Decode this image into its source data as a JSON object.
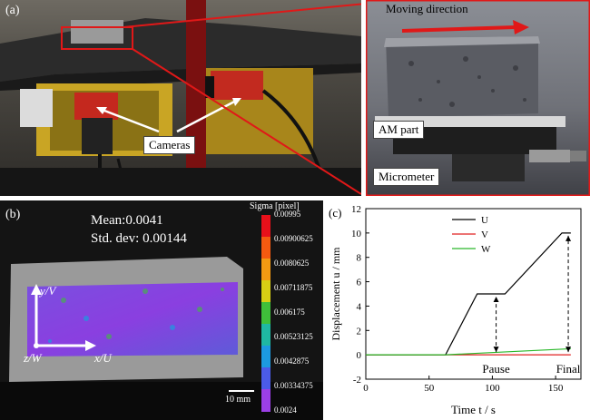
{
  "panel_a": {
    "label": "(a)",
    "cameras_label": "Cameras",
    "moving_direction_label": "Moving direction",
    "am_part_label": "AM part",
    "micrometer_label": "Micrometer"
  },
  "panel_b": {
    "label": "(b)",
    "mean_text": "Mean:0.0041",
    "std_text": "Std. dev: 0.00144",
    "colorbar_title": "Sigma [pixel]",
    "colorbar_ticks": [
      "0.00995",
      "0.00900625",
      "0.0080625",
      "0.00711875",
      "0.006175",
      "0.00523125",
      "0.0042875",
      "0.00334375",
      "0.0024"
    ],
    "colorbar_colors": [
      "#e8101a",
      "#f55a10",
      "#f39a12",
      "#d8cf14",
      "#3fbf3a",
      "#1fb8a2",
      "#1c9ae0",
      "#4b5be8",
      "#9b3fe6"
    ],
    "axis_v": "y/V",
    "axis_u": "x/U",
    "axis_w": "z/W",
    "scale_label": "10 mm"
  },
  "chart_data": {
    "type": "line",
    "panel_label": "(c)",
    "xlabel": "Time t / s",
    "ylabel": "Displacement u / mm",
    "xlim": [
      0,
      170
    ],
    "ylim": [
      -2,
      12
    ],
    "xticks": [
      0,
      50,
      100,
      150
    ],
    "yticks": [
      -2,
      0,
      2,
      4,
      6,
      8,
      10,
      12
    ],
    "series": [
      {
        "name": "U",
        "color": "#000000",
        "x": [
          0,
          63,
          88,
          103,
          105,
          110,
          155,
          162
        ],
        "y": [
          0,
          0,
          5,
          5,
          5,
          5,
          10,
          10
        ]
      },
      {
        "name": "V",
        "color": "#e02020",
        "x": [
          0,
          162
        ],
        "y": [
          0,
          0
        ]
      },
      {
        "name": "W",
        "color": "#2ab82a",
        "x": [
          0,
          63,
          162
        ],
        "y": [
          0,
          0,
          0.5
        ]
      }
    ],
    "annotations": [
      {
        "text": "Pause",
        "x": 103,
        "y_from": 0,
        "y_to": 5
      },
      {
        "text": "Final",
        "x": 160,
        "y_from": 0,
        "y_to": 10
      }
    ]
  }
}
